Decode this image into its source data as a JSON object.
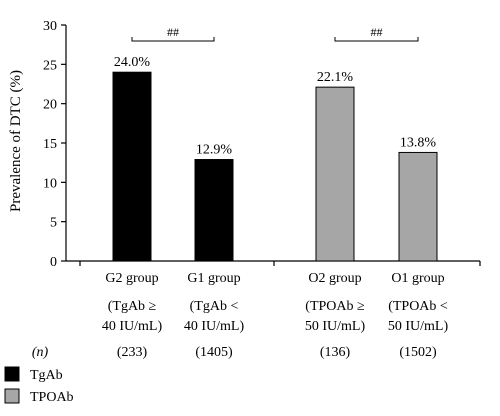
{
  "chart_data": {
    "type": "bar",
    "ylabel": "Prevalence of DTC (%)",
    "ylim": [
      0,
      30
    ],
    "yticks": [
      0,
      5,
      10,
      15,
      20,
      25,
      30
    ],
    "grid": false,
    "categories": [
      {
        "name": "G2 group",
        "desc1": "(TgAb ≥",
        "desc2": "40 IU/mL)",
        "n": "(233)"
      },
      {
        "name": "G1 group",
        "desc1": "(TgAb <",
        "desc2": "40 IU/mL)",
        "n": "(1405)"
      },
      {
        "name": "O2 group",
        "desc1": "(TPOAb ≥",
        "desc2": "50 IU/mL)",
        "n": "(136)"
      },
      {
        "name": "O1 group",
        "desc1": "(TPOAb <",
        "desc2": "50 IU/mL)",
        "n": "(1502)"
      }
    ],
    "values": [
      24.0,
      12.9,
      22.1,
      13.8
    ],
    "value_labels": [
      "24.0%",
      "12.9%",
      "22.1%",
      "13.8%"
    ],
    "series_index": [
      0,
      0,
      1,
      1
    ],
    "series": [
      {
        "name": "TgAb",
        "color": "#000000"
      },
      {
        "name": "TPOAb",
        "color": "#a6a6a6"
      }
    ],
    "n_label": "(n)",
    "significance": [
      {
        "from": 0,
        "to": 1,
        "label": "##"
      },
      {
        "from": 2,
        "to": 3,
        "label": "##"
      }
    ],
    "legend_position": "bottom-left"
  }
}
